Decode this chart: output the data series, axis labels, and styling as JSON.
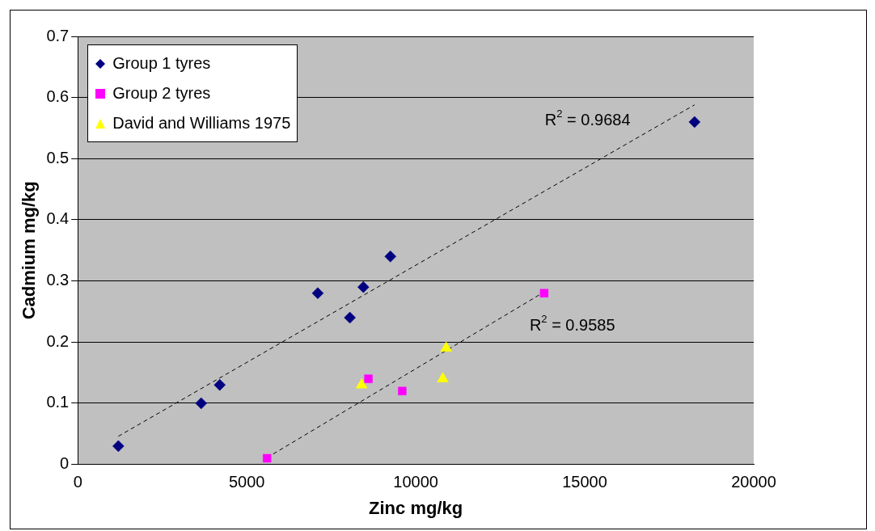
{
  "chart_data": {
    "type": "scatter",
    "xlabel": "Zinc mg/kg",
    "ylabel": "Cadmium mg/kg",
    "xlim": [
      0,
      20000
    ],
    "xticks": [
      0,
      5000,
      10000,
      15000,
      20000
    ],
    "ylim": [
      0,
      0.7
    ],
    "yticks": [
      0,
      0.1,
      0.2,
      0.3,
      0.4,
      0.5,
      0.6,
      0.7
    ],
    "grid": "y",
    "legend": "top left",
    "series": [
      {
        "name": "Group 1 tyres",
        "color": "#000080",
        "marker": "diamond",
        "x": [
          1200,
          3650,
          4200,
          7100,
          8050,
          8450,
          9250,
          18250
        ],
        "values": [
          0.03,
          0.1,
          0.13,
          0.28,
          0.24,
          0.29,
          0.34,
          0.56
        ]
      },
      {
        "name": "Group 2 tyres",
        "color": "#ff00ff",
        "marker": "square",
        "x": [
          5600,
          8600,
          9600,
          13800
        ],
        "values": [
          0.01,
          0.14,
          0.12,
          0.28
        ]
      },
      {
        "name": "David and Williams 1975",
        "color": "#ffff00",
        "marker": "triangle",
        "x": [
          8400,
          10800,
          10900
        ],
        "values": [
          0.13,
          0.14,
          0.19
        ]
      },
      {
        "type": "line",
        "color": "#000000",
        "marker": "none",
        "line_style": "dashed",
        "x": [
          1200,
          18250
        ],
        "values": [
          0.046,
          0.588
        ]
      },
      {
        "type": "line",
        "color": "#000000",
        "marker": "none",
        "line_style": "dashed",
        "x": [
          5600,
          13800
        ],
        "values": [
          0.011,
          0.282
        ]
      }
    ],
    "annotations": [
      "R$^{2}$ = 0.9684",
      "R$^{2}$ = 0.9585"
    ]
  }
}
